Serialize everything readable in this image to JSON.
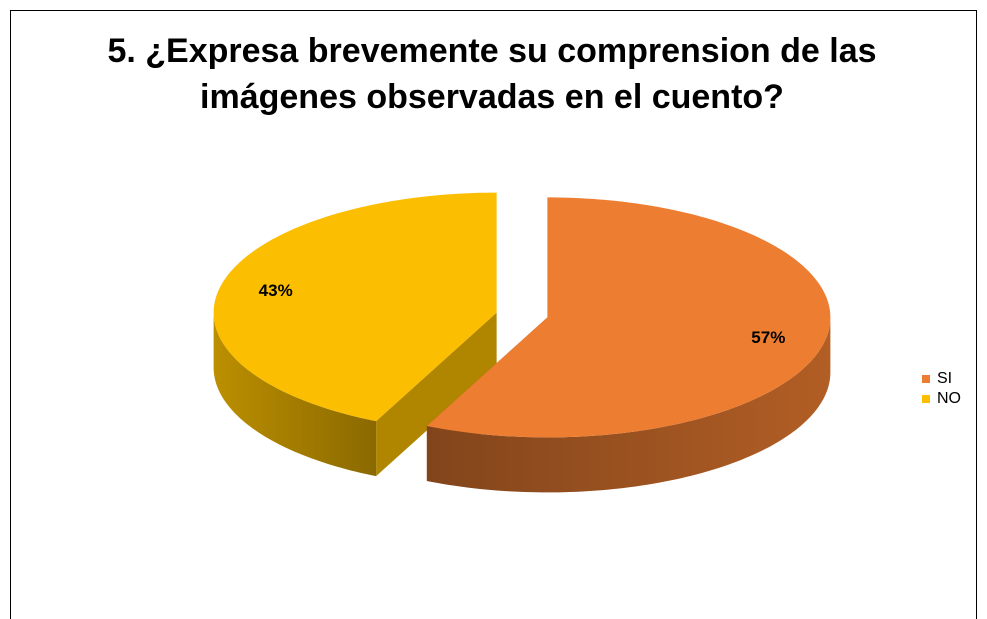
{
  "chart_data": {
    "type": "pie",
    "title": "5. ¿Expresa brevemente su comprension de las imágenes observadas en el cuento?",
    "categories": [
      "SI",
      "NO"
    ],
    "values": [
      57,
      43
    ],
    "value_labels": [
      "57%",
      "43%"
    ],
    "colors": [
      "#ed7d31",
      "#fbbe00"
    ],
    "legend": "right"
  }
}
